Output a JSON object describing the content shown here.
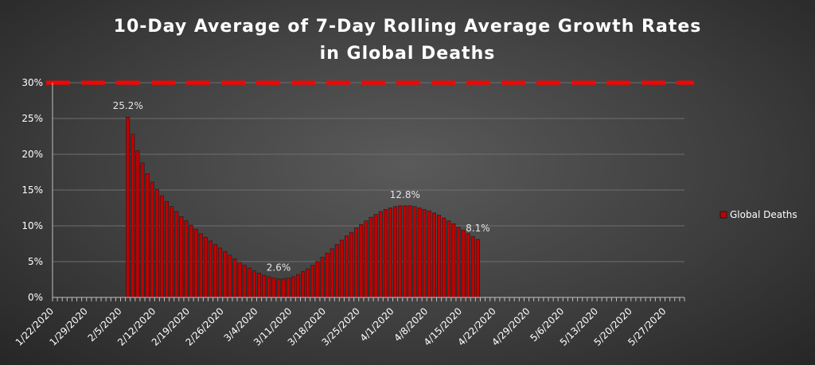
{
  "chart_data": {
    "type": "bar",
    "title_lines": [
      "10-Day Average of 7-Day Rolling Average Growth Rates",
      "in Global Deaths"
    ],
    "xlabel": "",
    "ylabel": "",
    "ylim": [
      0,
      0.3
    ],
    "yticks": [
      "0%",
      "5%",
      "10%",
      "15%",
      "20%",
      "25%",
      "30%"
    ],
    "xtick_labels": [
      "1/22/2020",
      "1/29/2020",
      "2/5/2020",
      "2/12/2020",
      "2/19/2020",
      "2/26/2020",
      "3/4/2020",
      "3/11/2020",
      "3/18/2020",
      "3/25/2020",
      "4/1/2020",
      "4/8/2020",
      "4/15/2020",
      "4/22/2020",
      "4/29/2020",
      "5/6/2020",
      "5/13/2020",
      "5/20/2020",
      "5/27/2020"
    ],
    "x_start_date": "1/22/2020",
    "n_days": 130,
    "grid": true,
    "legend_position": "right",
    "threshold": {
      "value": 0.3,
      "style": "dashed",
      "color": "#ff0000"
    },
    "colors": {
      "bar_fill": "#c00000",
      "bar_edge": "#1a1a1a",
      "grid": "#6e6e6e",
      "axis": "#bfbfbf"
    },
    "series": [
      {
        "name": "Global Deaths",
        "start_date": "2/6/2020",
        "values": [
          0.252,
          0.228,
          0.205,
          0.188,
          0.173,
          0.161,
          0.151,
          0.142,
          0.134,
          0.127,
          0.12,
          0.113,
          0.107,
          0.101,
          0.095,
          0.089,
          0.084,
          0.079,
          0.074,
          0.069,
          0.064,
          0.059,
          0.054,
          0.049,
          0.045,
          0.041,
          0.037,
          0.034,
          0.031,
          0.029,
          0.027,
          0.026,
          0.026,
          0.027,
          0.029,
          0.032,
          0.036,
          0.04,
          0.045,
          0.05,
          0.056,
          0.062,
          0.068,
          0.074,
          0.08,
          0.086,
          0.091,
          0.097,
          0.102,
          0.107,
          0.112,
          0.116,
          0.12,
          0.123,
          0.125,
          0.127,
          0.128,
          0.128,
          0.128,
          0.127,
          0.125,
          0.123,
          0.121,
          0.118,
          0.115,
          0.111,
          0.107,
          0.103,
          0.098,
          0.094,
          0.089,
          0.085,
          0.081
        ]
      }
    ],
    "data_labels": [
      {
        "index": 0,
        "text": "25.2%"
      },
      {
        "index": 31,
        "text": "2.6%"
      },
      {
        "index": 57,
        "text": "12.8%"
      },
      {
        "index": 72,
        "text": "8.1%"
      }
    ]
  }
}
